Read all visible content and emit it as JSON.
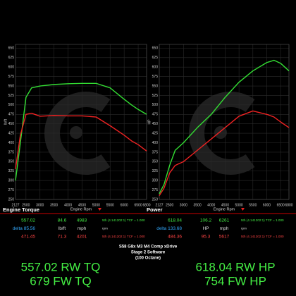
{
  "chart_data": [
    {
      "type": "line",
      "footer_title": "Engine Torque",
      "x_label": "Engine Rpm",
      "y_label": "lb/ft",
      "x": [
        2127,
        2300,
        2500,
        2700,
        3000,
        3500,
        4000,
        4500,
        5000,
        5500,
        6000,
        6261,
        6500,
        6800
      ],
      "series": [
        {
          "color": "#33dd33",
          "values": [
            300,
            400,
            520,
            545,
            550,
            554,
            556,
            557,
            557,
            545,
            515,
            500,
            488,
            475
          ]
        },
        {
          "color": "#ee2222",
          "values": [
            330,
            420,
            475,
            478,
            470,
            472,
            471,
            471,
            468,
            445,
            420,
            405,
            395,
            378
          ]
        }
      ],
      "xlim": [
        2127,
        6800
      ],
      "xticks": [
        2127,
        2500,
        3000,
        3500,
        4000,
        4500,
        5000,
        5500,
        6000,
        6500,
        6800
      ],
      "ylim": [
        250,
        660
      ],
      "yticks": [
        250,
        275,
        300,
        325,
        350,
        375,
        400,
        425,
        450,
        475,
        500,
        525,
        550,
        575,
        600,
        625,
        650
      ],
      "grid": true
    },
    {
      "type": "line",
      "footer_title": "Power",
      "x_label": "Engine Rpm",
      "y_label": "HP",
      "x": [
        2127,
        2300,
        2500,
        2700,
        3000,
        3500,
        4000,
        4500,
        5000,
        5500,
        6000,
        6261,
        6500,
        6800
      ],
      "series": [
        {
          "color": "#33dd33",
          "values": [
            265,
            290,
            340,
            380,
            400,
            440,
            475,
            520,
            560,
            590,
            612,
            618,
            610,
            590
          ]
        },
        {
          "color": "#ee2222",
          "values": [
            260,
            280,
            320,
            340,
            350,
            380,
            410,
            440,
            470,
            484,
            475,
            468,
            455,
            440
          ]
        }
      ],
      "xlim": [
        2127,
        6800
      ],
      "xticks": [
        2127,
        2500,
        3000,
        3500,
        4000,
        4500,
        5000,
        5500,
        6000,
        6500,
        6800
      ],
      "ylim": [
        250,
        660
      ],
      "yticks": [
        250,
        275,
        300,
        325,
        350,
        375,
        400,
        425,
        450,
        475,
        500,
        525,
        550,
        575,
        600,
        625,
        650
      ],
      "grid": true
    }
  ],
  "tables": [
    {
      "rows": [
        [
          "557.02",
          "84.6",
          "4983",
          "5th (4.141202:1) TCF = 1.000"
        ],
        [
          "delta 85.56",
          "lb/ft",
          "mph",
          "rpm"
        ],
        [
          "471.45",
          "71.3",
          "4201",
          "5th (4.141202:1) TCF = 1.000"
        ]
      ]
    },
    {
      "rows": [
        [
          "618.04",
          "106.2",
          "6261",
          "5th (4.141202:1) TCF = 1.000"
        ],
        [
          "delta 133.68",
          "HP",
          "mph",
          "rpm"
        ],
        [
          "484.36",
          "95.3",
          "5617",
          "5th (4.141202:1) TCF = 1.000"
        ]
      ]
    }
  ],
  "info": [
    "S58 G8x M3 M4 Comp xDrive",
    "Stage 2 Software",
    "(100 Octane)"
  ],
  "summary": {
    "left": [
      "557.02 RW TQ",
      "679 FW TQ"
    ],
    "right": [
      "618.04 RW HP",
      "754 FW HP"
    ]
  }
}
